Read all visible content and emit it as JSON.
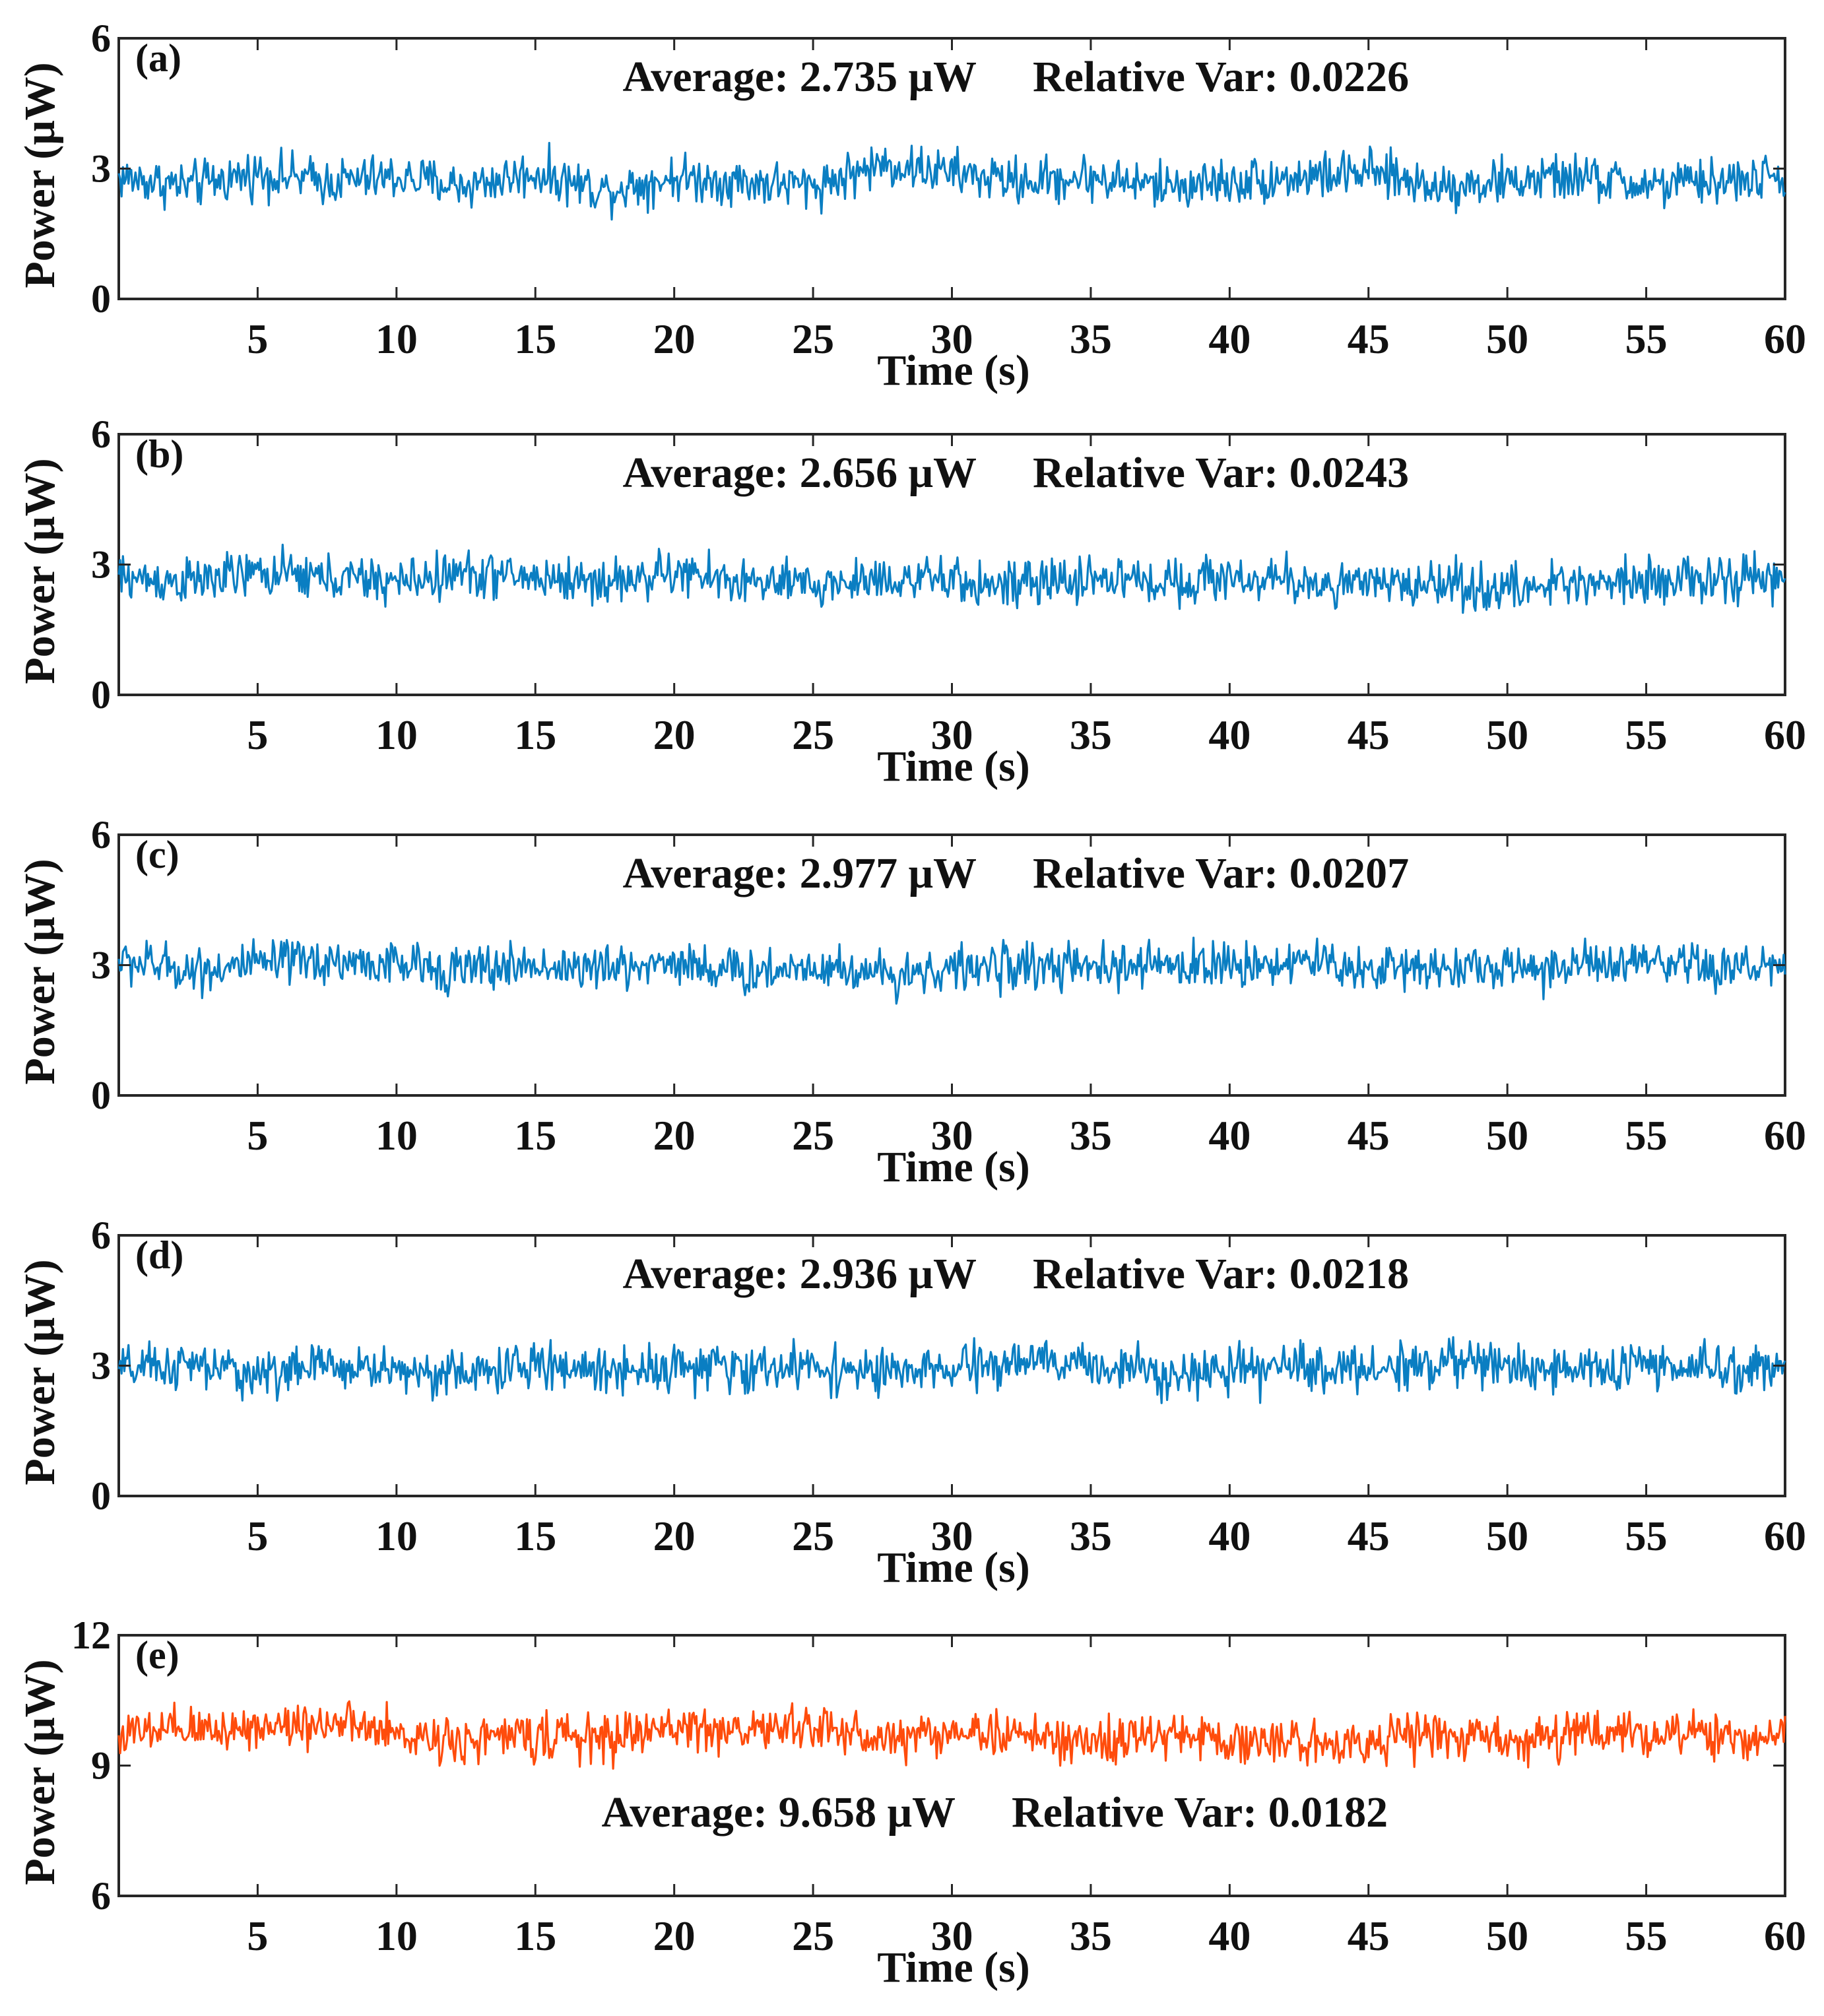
{
  "chart_data": [
    {
      "type": "line",
      "panel_label": "(a)",
      "xlabel": "Time (s)",
      "ylabel": "Power (μW)",
      "xlim": [
        0,
        60
      ],
      "ylim": [
        0,
        6
      ],
      "x_ticks": [
        "5",
        "10",
        "15",
        "20",
        "25",
        "30",
        "35",
        "40",
        "45",
        "50",
        "55",
        "60"
      ],
      "y_ticks": [
        "0",
        "3",
        "6"
      ],
      "color": "#0a7ec2",
      "annotation": {
        "average_label": "Average: 2.735 μW",
        "var_label": "Relative Var: 0.0226",
        "position": "top"
      },
      "series": [
        {
          "x": [
            0,
            2.5,
            5,
            7.5,
            10,
            12.5,
            15,
            17.5,
            20,
            22.5,
            25,
            27.5,
            30,
            32.5,
            35,
            37.5,
            40,
            42.5,
            45,
            47.5,
            50,
            52.5,
            55,
            57.5,
            60
          ],
          "values": [
            2.8,
            2.6,
            2.9,
            2.7,
            2.8,
            2.6,
            2.9,
            2.5,
            2.8,
            2.7,
            2.6,
            3.1,
            2.9,
            2.7,
            2.8,
            2.6,
            2.7,
            2.8,
            2.9,
            2.6,
            2.7,
            2.8,
            2.6,
            2.7,
            2.8
          ]
        }
      ]
    },
    {
      "type": "line",
      "panel_label": "(b)",
      "xlabel": "Time (s)",
      "ylabel": "Power (μW)",
      "xlim": [
        0,
        60
      ],
      "ylim": [
        0,
        6
      ],
      "x_ticks": [
        "5",
        "10",
        "15",
        "20",
        "25",
        "30",
        "35",
        "40",
        "45",
        "50",
        "55",
        "60"
      ],
      "y_ticks": [
        "0",
        "3",
        "6"
      ],
      "color": "#0a7ec2",
      "annotation": {
        "average_label": "Average: 2.656 μW",
        "var_label": "Relative Var: 0.0243",
        "position": "top"
      },
      "series": [
        {
          "x": [
            0,
            2.5,
            5,
            7.5,
            10,
            12.5,
            15,
            17.5,
            20,
            22.5,
            25,
            27.5,
            30,
            32.5,
            35,
            37.5,
            40,
            42.5,
            45,
            47.5,
            50,
            52.5,
            55,
            57.5,
            60
          ],
          "values": [
            2.7,
            2.6,
            2.8,
            2.7,
            2.6,
            2.8,
            2.7,
            2.6,
            2.8,
            2.6,
            2.5,
            2.7,
            2.6,
            2.5,
            2.7,
            2.6,
            2.7,
            2.6,
            2.5,
            2.6,
            2.4,
            2.6,
            2.7,
            2.6,
            2.7
          ]
        }
      ]
    },
    {
      "type": "line",
      "panel_label": "(c)",
      "xlabel": "Time (s)",
      "ylabel": "Power (μW)",
      "xlim": [
        0,
        60
      ],
      "ylim": [
        0,
        6
      ],
      "x_ticks": [
        "5",
        "10",
        "15",
        "20",
        "25",
        "30",
        "35",
        "40",
        "45",
        "50",
        "55",
        "60"
      ],
      "y_ticks": [
        "0",
        "3",
        "6"
      ],
      "color": "#0a7ec2",
      "annotation": {
        "average_label": "Average: 2.977 μW",
        "var_label": "Relative Var: 0.0207",
        "position": "top"
      },
      "series": [
        {
          "x": [
            0,
            2.5,
            5,
            7.5,
            10,
            12.5,
            15,
            17.5,
            20,
            22.5,
            25,
            27.5,
            30,
            32.5,
            35,
            37.5,
            40,
            42.5,
            45,
            47.5,
            50,
            52.5,
            55,
            57.5,
            60
          ],
          "values": [
            3.1,
            2.9,
            3.0,
            3.1,
            3.0,
            2.9,
            3.0,
            2.9,
            3.1,
            2.8,
            3.0,
            2.8,
            2.9,
            3.0,
            2.9,
            3.0,
            3.0,
            3.1,
            2.9,
            3.0,
            2.9,
            3.0,
            3.0,
            2.9,
            3.0
          ]
        }
      ]
    },
    {
      "type": "line",
      "panel_label": "(d)",
      "xlabel": "Time (s)",
      "ylabel": "Power (μW)",
      "xlim": [
        0,
        60
      ],
      "ylim": [
        0,
        6
      ],
      "x_ticks": [
        "5",
        "10",
        "15",
        "20",
        "25",
        "30",
        "35",
        "40",
        "45",
        "50",
        "55",
        "60"
      ],
      "y_ticks": [
        "0",
        "3",
        "6"
      ],
      "color": "#0a7ec2",
      "annotation": {
        "average_label": "Average: 2.936 μW",
        "var_label": "Relative Var: 0.0218",
        "position": "top"
      },
      "series": [
        {
          "x": [
            0,
            2.5,
            5,
            7.5,
            10,
            12.5,
            15,
            17.5,
            20,
            22.5,
            25,
            27.5,
            30,
            32.5,
            35,
            37.5,
            40,
            42.5,
            45,
            47.5,
            50,
            52.5,
            55,
            57.5,
            60
          ],
          "values": [
            2.9,
            3.0,
            2.8,
            3.0,
            2.9,
            2.8,
            3.0,
            2.9,
            3.0,
            2.9,
            3.0,
            2.8,
            2.9,
            3.1,
            3.0,
            2.9,
            2.8,
            3.0,
            2.9,
            3.1,
            3.0,
            2.9,
            3.0,
            2.9,
            3.0
          ]
        }
      ]
    },
    {
      "type": "line",
      "panel_label": "(e)",
      "xlabel": "Time (s)",
      "ylabel": "Power (μW)",
      "xlim": [
        0,
        60
      ],
      "ylim": [
        6,
        12
      ],
      "x_ticks": [
        "5",
        "10",
        "15",
        "20",
        "25",
        "30",
        "35",
        "40",
        "45",
        "50",
        "55",
        "60"
      ],
      "y_ticks": [
        "6",
        "9",
        "12"
      ],
      "color": "#ff4c0c",
      "annotation": {
        "average_label": "Average: 9.658 μW",
        "var_label": "Relative Var: 0.0182",
        "position": "bottom"
      },
      "series": [
        {
          "x": [
            0,
            2.5,
            5,
            7.5,
            10,
            12.5,
            15,
            17.5,
            20,
            22.5,
            25,
            27.5,
            30,
            32.5,
            35,
            37.5,
            40,
            42.5,
            45,
            47.5,
            50,
            52.5,
            55,
            57.5,
            60
          ],
          "values": [
            9.7,
            9.8,
            9.9,
            10.0,
            9.7,
            9.6,
            9.7,
            9.6,
            9.9,
            9.8,
            9.9,
            9.6,
            9.8,
            9.7,
            9.5,
            9.7,
            9.6,
            9.5,
            9.6,
            9.7,
            9.6,
            9.7,
            9.8,
            9.6,
            9.7
          ]
        }
      ]
    }
  ]
}
